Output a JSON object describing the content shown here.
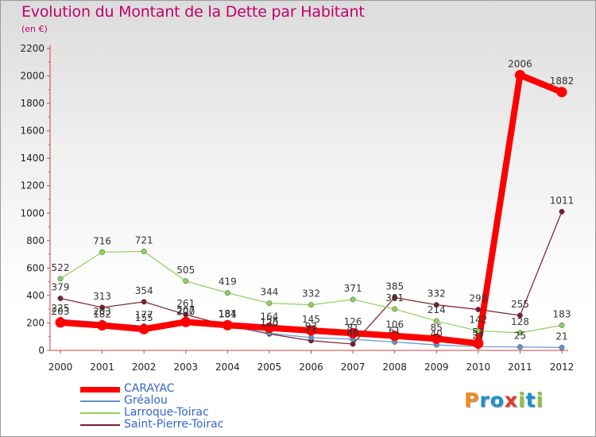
{
  "header": {
    "title": "Evolution du Montant de la Dette par Habitant",
    "unit": "(en €)"
  },
  "chart_data": {
    "type": "line",
    "title": "Evolution du Montant de la Dette par Habitant",
    "subtitle": "(en €)",
    "xlabel": "",
    "ylabel": "",
    "x": [
      "2000",
      "2001",
      "2002",
      "2003",
      "2004",
      "2005",
      "2006",
      "2007",
      "2008",
      "2009",
      "2010",
      "2011",
      "2012"
    ],
    "y_ticks": [
      0,
      200,
      400,
      600,
      800,
      1000,
      1200,
      1400,
      1600,
      1800,
      2000,
      2200
    ],
    "ylim": [
      0,
      2200
    ],
    "grid": false,
    "legend_position": "bottom-left",
    "series": [
      {
        "name": "CARAYAC",
        "color": "#ff0000",
        "values": [
          203,
          182,
          155,
          207,
          184,
          164,
          145,
          126,
          106,
          85,
          51,
          2006,
          1882
        ],
        "labels": [
          "203",
          "182",
          "155",
          "207",
          "184",
          "164",
          "145",
          "126",
          "106",
          "85",
          "51",
          "2006",
          "1882"
        ]
      },
      {
        "name": "Gréalou",
        "color": "#5f95c8",
        "values": [
          225,
          203,
          177,
          200,
          181,
          125,
          93,
          81,
          61,
          40,
          27,
          25,
          21
        ],
        "labels": [
          "225",
          "203",
          "177",
          "200",
          "181",
          "125",
          "93",
          "81",
          "61",
          "40",
          "27",
          "25",
          "21"
        ]
      },
      {
        "name": "Larroque-Toirac",
        "color": "#8fd15a",
        "values": [
          522,
          716,
          721,
          505,
          419,
          344,
          332,
          371,
          301,
          214,
          142,
          128,
          183
        ],
        "labels": [
          "522",
          "716",
          "721",
          "505",
          "419",
          "344",
          "332",
          "371",
          "301",
          "214",
          "142",
          "128",
          "183"
        ]
      },
      {
        "name": "Saint-Pierre-Toirac",
        "color": "#7a1e2a",
        "values": [
          379,
          313,
          354,
          261,
          181,
          120,
          71,
          46,
          385,
          332,
          298,
          255,
          1011
        ],
        "labels": [
          "379",
          "313",
          "354",
          "261",
          "181",
          "120",
          "71",
          "46",
          "385",
          "332",
          "298",
          "255",
          "1011"
        ]
      }
    ]
  },
  "legend": {
    "items": [
      {
        "label": "CARAYAC",
        "color": "#ff0000"
      },
      {
        "label": "Gréalou",
        "color": "#5f95c8"
      },
      {
        "label": "Larroque-Toirac",
        "color": "#8fd15a"
      },
      {
        "label": "Saint-Pierre-Toirac",
        "color": "#7a1e2a"
      }
    ]
  },
  "logo": {
    "letters": [
      "P",
      "r",
      "o",
      "x",
      "i",
      "t",
      "i"
    ],
    "colors": [
      "#f08a1c",
      "#1e8fd0",
      "#1e8fd0",
      "#e33b2c",
      "#8cc63f",
      "#1e8fd0",
      "#8cc63f"
    ]
  }
}
